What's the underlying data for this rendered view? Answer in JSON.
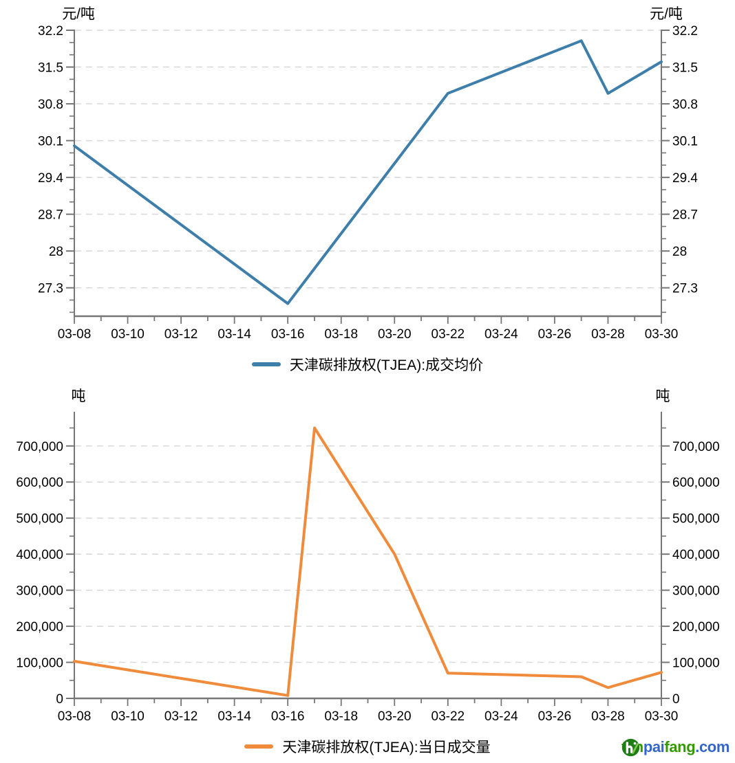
{
  "chart_data": [
    {
      "type": "line",
      "name": "tianjin-carbon-average-price",
      "title": "",
      "y_unit": "元/吨",
      "legend": [
        "天津碳排放权(TJEA):成交均价"
      ],
      "legend_position": "bottom-center",
      "grid": "horizontal-dashed",
      "x_tick_labels": [
        "03-08",
        "03-10",
        "03-12",
        "03-14",
        "03-16",
        "03-18",
        "03-20",
        "03-22",
        "03-24",
        "03-26",
        "03-28",
        "03-30"
      ],
      "x_domain_days": [
        8,
        30
      ],
      "x_label_every_days": 2,
      "y_tick_values": [
        32.2,
        31.5,
        30.8,
        30.1,
        29.4,
        28.7,
        28,
        27.3
      ],
      "y_tick_labels": [
        "32.2",
        "31.5",
        "30.8",
        "30.1",
        "29.4",
        "28.7",
        "28",
        "27.3"
      ],
      "ylim": [
        26.76,
        32.2
      ],
      "y_minor_tick_step": 0.2333,
      "series": [
        {
          "name": "天津碳排放权(TJEA):成交均价",
          "color": "#3d7eaa",
          "points": [
            {
              "date": "03-08",
              "value": 30.0
            },
            {
              "date": "03-16",
              "value": 27.0
            },
            {
              "date": "03-22",
              "value": 31.0
            },
            {
              "date": "03-27",
              "value": 32.0
            },
            {
              "date": "03-28",
              "value": 31.0
            },
            {
              "date": "03-30",
              "value": 31.6
            }
          ]
        }
      ]
    },
    {
      "type": "line",
      "name": "tianjin-carbon-daily-volume",
      "title": "",
      "y_unit": "吨",
      "legend": [
        "天津碳排放权(TJEA):当日成交量"
      ],
      "legend_position": "bottom-center",
      "grid": "horizontal-dashed",
      "x_tick_labels": [
        "03-08",
        "03-10",
        "03-12",
        "03-14",
        "03-16",
        "03-18",
        "03-20",
        "03-22",
        "03-24",
        "03-26",
        "03-28",
        "03-30"
      ],
      "x_domain_days": [
        8,
        30
      ],
      "x_label_every_days": 2,
      "y_tick_values": [
        700000,
        600000,
        500000,
        400000,
        300000,
        200000,
        100000,
        0
      ],
      "y_tick_labels": [
        "700,000",
        "600,000",
        "500,000",
        "400,000",
        "300,000",
        "200,000",
        "100,000",
        "0"
      ],
      "ylim": [
        0,
        793000
      ],
      "y_minor_tick_step": 50000,
      "series": [
        {
          "name": "天津碳排放权(TJEA):当日成交量",
          "color": "#ef8b3a",
          "points": [
            {
              "date": "03-08",
              "value": 103000
            },
            {
              "date": "03-16",
              "value": 8000
            },
            {
              "date": "03-17",
              "value": 750000
            },
            {
              "date": "03-20",
              "value": 400000
            },
            {
              "date": "03-22",
              "value": 70000
            },
            {
              "date": "03-27",
              "value": 60000
            },
            {
              "date": "03-28",
              "value": 30000
            },
            {
              "date": "03-30",
              "value": 72000
            }
          ]
        }
      ]
    }
  ],
  "style": {
    "grid_color": "#d8d8d8",
    "axis_color": "#767676",
    "text_color": "#000000"
  },
  "watermark": {
    "label": "tanpaifang.com",
    "segments": [
      {
        "text": "tan",
        "color": "#339900"
      },
      {
        "text": "pai",
        "color": "#3366cc"
      },
      {
        "text": "fang",
        "color": "#339900"
      },
      {
        "text": ".com",
        "color": "#3366cc"
      }
    ],
    "icon_colors": {
      "circle": "#1e7d14",
      "glyph": "#ffffff",
      "leaf": "#7ec850"
    }
  }
}
